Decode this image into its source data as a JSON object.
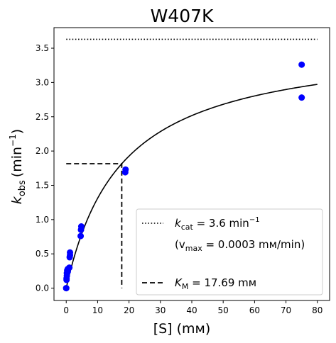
{
  "chart_data": {
    "type": "scatter",
    "title": "W407K",
    "xlabel": "[S] (mм)",
    "ylabel_main": "k",
    "ylabel_sub": "obs",
    "ylabel_units_prefix": "(min",
    "ylabel_units_sup": "−1",
    "ylabel_units_suffix": ")",
    "xlim": [
      -3.9,
      83.9
    ],
    "ylim": [
      -0.18,
      3.8
    ],
    "xticks": [
      0,
      10,
      20,
      30,
      40,
      50,
      60,
      70,
      80
    ],
    "yticks": [
      0.0,
      0.5,
      1.0,
      1.5,
      2.0,
      2.5,
      3.0,
      3.5
    ],
    "ytick_labels": [
      "0.0",
      "0.5",
      "1.0",
      "1.5",
      "2.0",
      "2.5",
      "3.0",
      "3.5"
    ],
    "grid": false,
    "legend_placement": "lower-right",
    "colors": {
      "points": "#0000ff",
      "lines": "#000000"
    },
    "kcat": 3.63,
    "km": 17.69,
    "fit_x_range": [
      0,
      80
    ],
    "kcat_line_x_range": [
      0,
      80
    ],
    "series": [
      {
        "kind": "points",
        "x": [
          0,
          0,
          0.1,
          0.1,
          0.2,
          0.2,
          0.3,
          0.5,
          0.5,
          1.0,
          1.1,
          1.2,
          1.2,
          4.6,
          4.7,
          4.8,
          18.8,
          18.9,
          75.0,
          75.0
        ],
        "y": [
          0.0,
          0.0,
          0.12,
          0.14,
          0.18,
          0.22,
          0.26,
          0.24,
          0.28,
          0.3,
          0.45,
          0.48,
          0.52,
          0.76,
          0.85,
          0.9,
          1.69,
          1.73,
          3.26,
          2.78
        ]
      }
    ],
    "legend": {
      "kcat_label_main": "k",
      "kcat_label_sub": "cat",
      "kcat_label_rest": " = 3.6 min",
      "kcat_label_sup": "−1",
      "vmax_label_open": "(v",
      "vmax_label_sub": "max",
      "vmax_label_rest": " = 0.0003 mм/min)",
      "km_label_main": "K",
      "km_label_sub": "M",
      "km_label_rest": " = 17.69 mм"
    }
  }
}
